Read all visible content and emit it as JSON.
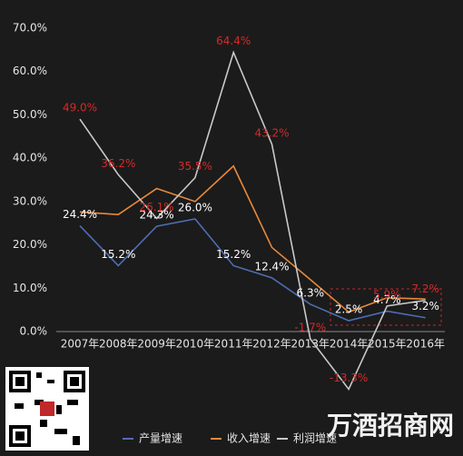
{
  "chart_data": {
    "type": "line",
    "categories": [
      "2007年",
      "2008年",
      "2009年",
      "2010年",
      "2011年",
      "2012年",
      "2013年",
      "2014年",
      "2015年",
      "2016年"
    ],
    "series": [
      {
        "name": "产量增速",
        "color": "#4e6db3",
        "label_color": "#ffffff",
        "values": [
          24.4,
          15.2,
          24.3,
          26.0,
          15.2,
          12.4,
          6.3,
          2.5,
          4.7,
          3.2
        ],
        "value_labels": [
          "24.4%",
          "15.2%",
          "24.3%",
          "26.0%",
          "15.2%",
          "12.4%",
          "6.3%",
          "2.5%",
          "4.7%",
          "3.2%"
        ]
      },
      {
        "name": "收入增速",
        "color": "#e8893a",
        "values": [
          27.6,
          27.0,
          33.0,
          30.0,
          38.2,
          19.4,
          12.0,
          4.5,
          7.8,
          7.5
        ]
      },
      {
        "name": "利润增速",
        "color": "#c9c9c9",
        "label_color": "#d42a2a",
        "values": [
          49.0,
          36.2,
          26.1,
          35.5,
          64.4,
          43.2,
          -1.7,
          -13.3,
          5.9,
          7.2
        ],
        "value_labels": [
          "49.0%",
          "36.2%",
          "26.1%",
          "35.5%",
          "64.4%",
          "43.2%",
          "-1.7%",
          "-13.3%",
          "5.9%",
          "7.2%"
        ]
      }
    ],
    "ylim": [
      0,
      70
    ],
    "yticks": [
      {
        "value": 0,
        "label": "0.0%"
      },
      {
        "value": 10,
        "label": "10.0%"
      },
      {
        "value": 20,
        "label": "20.0%"
      },
      {
        "value": 30,
        "label": "30.0%"
      },
      {
        "value": 40,
        "label": "40.0%"
      },
      {
        "value": 50,
        "label": "50.0%"
      },
      {
        "value": 60,
        "label": "60.0%"
      },
      {
        "value": 70,
        "label": "70.0%"
      }
    ],
    "grid": false,
    "legend": "bottom"
  },
  "watermark": "万酒招商网"
}
